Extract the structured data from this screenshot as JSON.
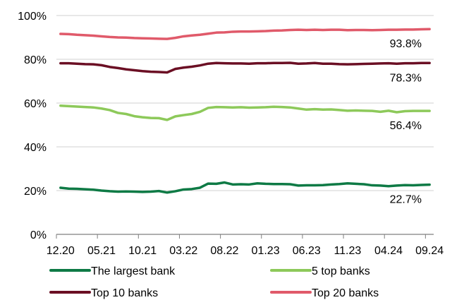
{
  "chart_data": {
    "type": "line",
    "title": "",
    "xlabel": "",
    "ylabel": "",
    "ylim": [
      0,
      100
    ],
    "y_ticks": [
      "0%",
      "20%",
      "40%",
      "60%",
      "80%",
      "100%"
    ],
    "x_tick_labels": [
      "12.20",
      "05.21",
      "10.21",
      "03.22",
      "08.22",
      "01.23",
      "06.23",
      "11.23",
      "04.24",
      "09.24"
    ],
    "grid": "horizontal",
    "legend_position": "bottom",
    "x": [
      "12.20",
      "01.21",
      "02.21",
      "03.21",
      "04.21",
      "05.21",
      "06.21",
      "07.21",
      "08.21",
      "09.21",
      "10.21",
      "11.21",
      "12.21",
      "01.22",
      "02.22",
      "03.22",
      "04.22",
      "05.22",
      "06.22",
      "07.22",
      "08.22",
      "09.22",
      "10.22",
      "11.22",
      "12.22",
      "01.23",
      "02.23",
      "03.23",
      "04.23",
      "05.23",
      "06.23",
      "07.23",
      "08.23",
      "09.23",
      "10.23",
      "11.23",
      "12.23",
      "01.24",
      "02.24",
      "03.24",
      "04.24",
      "05.24",
      "06.24",
      "07.24",
      "08.24",
      "09.24"
    ],
    "series": [
      {
        "name": "The largest bank",
        "color": "#0e7a45",
        "end_label": "22.7%",
        "values": [
          21.3,
          20.9,
          20.8,
          20.6,
          20.4,
          20.0,
          19.7,
          19.5,
          19.6,
          19.5,
          19.4,
          19.5,
          19.8,
          19.1,
          19.7,
          20.5,
          20.7,
          21.3,
          23.2,
          23.1,
          23.7,
          22.8,
          22.9,
          22.8,
          23.3,
          23.1,
          23.0,
          23.0,
          22.9,
          22.3,
          22.4,
          22.4,
          22.5,
          22.8,
          23.0,
          23.3,
          23.1,
          22.9,
          22.4,
          22.3,
          22.0,
          22.3,
          22.5,
          22.4,
          22.6,
          22.7
        ]
      },
      {
        "name": "5 top banks",
        "color": "#8dc95a",
        "end_label": "56.4%",
        "values": [
          58.8,
          58.6,
          58.4,
          58.2,
          58.0,
          57.5,
          56.8,
          55.5,
          55.0,
          54.0,
          53.5,
          53.2,
          53.1,
          52.3,
          53.9,
          54.5,
          55.0,
          56.0,
          57.8,
          58.2,
          58.1,
          58.0,
          58.1,
          57.9,
          58.0,
          58.1,
          58.3,
          58.2,
          58.0,
          57.5,
          57.0,
          57.2,
          57.0,
          57.1,
          56.8,
          56.5,
          56.6,
          56.5,
          56.4,
          56.0,
          56.5,
          55.8,
          56.3,
          56.4,
          56.4,
          56.4
        ]
      },
      {
        "name": "Top 10 banks",
        "color": "#6b0f24",
        "end_label": "78.3%",
        "values": [
          78.2,
          78.2,
          78.0,
          77.8,
          77.7,
          77.3,
          76.5,
          76.0,
          75.4,
          75.0,
          74.6,
          74.3,
          74.2,
          74.0,
          75.6,
          76.2,
          76.6,
          77.2,
          78.0,
          78.3,
          78.2,
          78.1,
          78.1,
          78.0,
          78.2,
          78.2,
          78.3,
          78.3,
          78.4,
          78.0,
          78.1,
          78.3,
          78.0,
          78.0,
          77.8,
          77.7,
          77.8,
          77.9,
          78.0,
          78.1,
          78.2,
          78.0,
          78.2,
          78.2,
          78.3,
          78.3
        ]
      },
      {
        "name": "Top 20 banks",
        "color": "#e05a6a",
        "end_label": "93.8%",
        "values": [
          91.6,
          91.5,
          91.2,
          91.0,
          90.8,
          90.5,
          90.2,
          90.0,
          89.9,
          89.7,
          89.6,
          89.5,
          89.4,
          89.3,
          89.8,
          90.5,
          90.9,
          91.2,
          91.7,
          92.2,
          92.3,
          92.6,
          92.7,
          92.7,
          92.8,
          92.9,
          93.1,
          93.2,
          93.4,
          93.5,
          93.4,
          93.5,
          93.4,
          93.5,
          93.5,
          93.3,
          93.4,
          93.4,
          93.3,
          93.4,
          93.5,
          93.5,
          93.6,
          93.6,
          93.7,
          93.8
        ]
      }
    ]
  }
}
